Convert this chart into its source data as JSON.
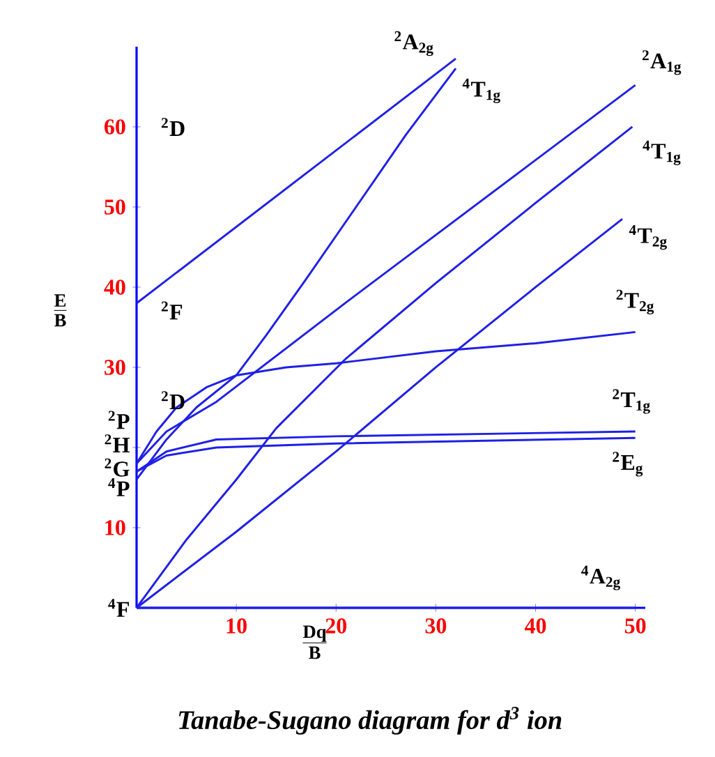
{
  "chart_data": {
    "type": "line",
    "title": "Tanabe-Sugano diagram for d$^{3}$ ion",
    "xlabel": "\\frac{\\mathbf{Dq}}{\\mathbf{B}}",
    "ylabel": "\\frac{\\mathbf{E}}{\\mathbf{B}}",
    "xlim": [
      0,
      51
    ],
    "ylim": [
      0,
      70
    ],
    "xticks": [
      10,
      20,
      30,
      40,
      50
    ],
    "yticks": [
      10,
      {
        "value": 20,
        "label": null
      },
      30,
      40,
      50,
      60
    ],
    "grid": false,
    "legend": false,
    "marker": "none",
    "line_style": "solid",
    "series": [
      {
        "name": "$^{2}$A$_{2g}$",
        "color": "#1f1fe6",
        "x": [
          0,
          32
        ],
        "values": [
          38,
          68.5
        ]
      },
      {
        "name": "$^{4}$T$_{1g}$",
        "color": "#1f1fe6",
        "x": [
          0,
          3,
          6,
          10,
          13,
          17,
          22,
          27,
          32
        ],
        "values": [
          16,
          21,
          25,
          29,
          34,
          41,
          50,
          59,
          67.3
        ]
      },
      {
        "name": "$^{2}$A$_{1g}$",
        "color": "#1f1fe6",
        "x": [
          0,
          3,
          8,
          21,
          50
        ],
        "values": [
          18,
          22,
          25.7,
          38.1,
          65.2
        ]
      },
      {
        "name": "$^{4}$T$_{1g}$",
        "color": "#1f1fe6",
        "x": [
          0,
          5,
          10,
          14,
          21,
          30,
          40,
          49.7
        ],
        "values": [
          0,
          8.5,
          16,
          22.4,
          31.1,
          40.5,
          50.5,
          60
        ]
      },
      {
        "name": "$^{4}$T$_{2g}$",
        "color": "#1f1fe6",
        "x": [
          0,
          10,
          20,
          30,
          40,
          48.7
        ],
        "values": [
          0,
          9.5,
          19.5,
          30,
          40,
          48.5
        ]
      },
      {
        "name": "$^{2}$T$_{2g}$",
        "color": "#1f1fe6",
        "x": [
          0,
          2,
          4,
          7,
          10,
          15,
          20,
          30,
          40,
          50
        ],
        "values": [
          18,
          22,
          25,
          27.5,
          29,
          30,
          30.5,
          32,
          33,
          34.4
        ]
      },
      {
        "name": "$^{2}$T$_{1g}$",
        "color": "#1f1fe6",
        "x": [
          0,
          3,
          8,
          20,
          50
        ],
        "values": [
          17,
          19.5,
          21,
          21.4,
          22
        ]
      },
      {
        "name": "$^{2}$E$_{g}$",
        "color": "#1f1fe6",
        "x": [
          0,
          3,
          8,
          20,
          50
        ],
        "values": [
          17,
          19,
          20,
          20.5,
          21.2
        ]
      },
      {
        "name": "$^{4}$A$_{2g}$",
        "color": "#1f1fe6",
        "x": [
          0,
          50
        ],
        "values": [
          0,
          0
        ]
      }
    ],
    "annotations": [
      "$^{2}$D",
      "$^{2}$F",
      "$^{2}$D",
      "$^{2}$P",
      "$^{2}$H",
      "$^{2}$G",
      "$^{4}$P",
      "$^{4}$F"
    ]
  }
}
